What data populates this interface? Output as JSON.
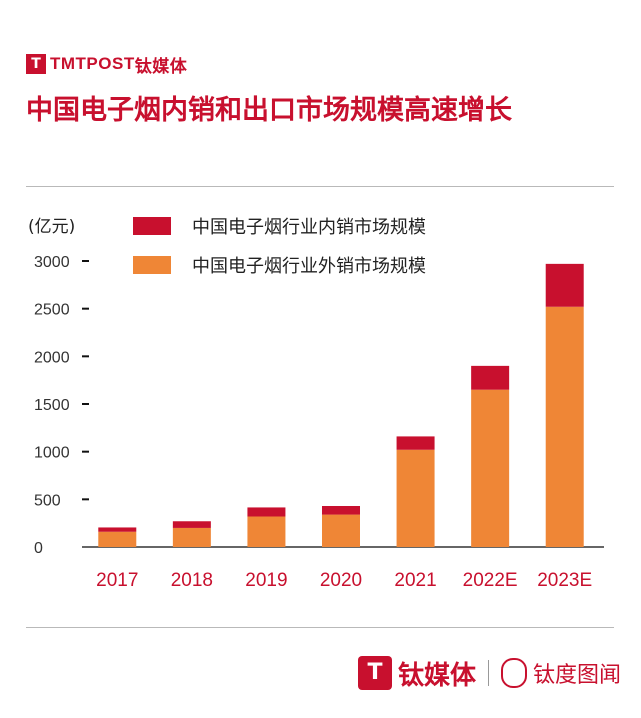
{
  "header": {
    "brand_en": "TMTPOST",
    "brand_cn": "钛媒体",
    "title": "中国电子烟内销和出口市场规模高速增长"
  },
  "footer": {
    "brand_cn": "钛媒体",
    "brand2_cn": "钛度图闻"
  },
  "colors": {
    "accent": "#c8102e",
    "domestic": "#c8102e",
    "export": "#ef8636"
  },
  "chart_data": {
    "type": "bar",
    "stacked": true,
    "unit_label": "(亿元)",
    "categories": [
      "2017",
      "2018",
      "2019",
      "2020",
      "2021",
      "2022E",
      "2023E"
    ],
    "series": [
      {
        "name": "中国电子烟行业外销市场规模",
        "values": [
          160,
          200,
          320,
          340,
          1020,
          1650,
          2520
        ],
        "color": "#ef8636"
      },
      {
        "name": "中国电子烟行业内销市场规模",
        "values": [
          45,
          70,
          95,
          90,
          140,
          250,
          450
        ],
        "color": "#c8102e"
      }
    ],
    "legend_order": [
      "中国电子烟行业内销市场规模",
      "中国电子烟行业外销市场规模"
    ],
    "legend_position": "top",
    "yticks": [
      0,
      500,
      1000,
      1500,
      2000,
      2500,
      3000
    ],
    "ylim": [
      0,
      3000
    ],
    "grid": false
  }
}
